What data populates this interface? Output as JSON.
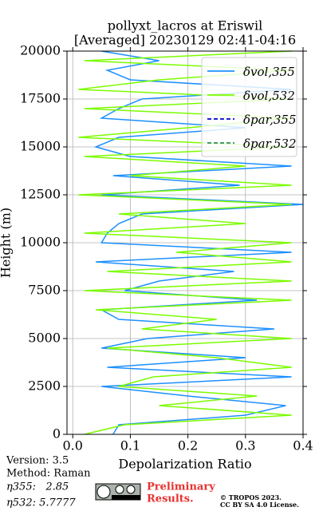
{
  "chart_data": {
    "type": "line",
    "title": "pollyxt_lacros at Eriswil",
    "subtitle": "[Averaged] 20230129 02:41-04:16",
    "xlabel": "Depolarization Ratio",
    "ylabel": "Height (m)",
    "y": [
      0,
      500,
      1000,
      1500,
      2000,
      2500,
      3000,
      3500,
      4000,
      4500,
      5000,
      5500,
      6000,
      6500,
      7000,
      7500,
      8000,
      8500,
      9000,
      9500,
      10000,
      10500,
      11000,
      11500,
      12000,
      12500,
      13000,
      13500,
      14000,
      14500,
      15000,
      15500,
      16000,
      16500,
      17000,
      17500,
      18000,
      18500,
      19000,
      19500,
      20000
    ],
    "series": [
      {
        "name": "δvol,355",
        "color": "#1e90ff",
        "dash": false,
        "values": [
          0.07,
          0.08,
          0.3,
          0.37,
          0.2,
          0.05,
          0.38,
          0.06,
          0.3,
          0.05,
          0.13,
          0.35,
          0.08,
          0.05,
          0.32,
          0.09,
          0.15,
          0.28,
          0.04,
          0.38,
          0.05,
          0.06,
          0.08,
          0.12,
          0.4,
          0.05,
          0.29,
          0.07,
          0.38,
          0.1,
          0.04,
          0.08,
          0.3,
          0.05,
          0.08,
          0.12,
          0.38,
          0.1,
          0.06,
          0.15,
          0.05
        ]
      },
      {
        "name": "δvol,532",
        "color": "#7cfc00",
        "dash": false,
        "values": [
          0.02,
          0.09,
          0.38,
          0.15,
          0.32,
          0.08,
          0.14,
          0.38,
          0.25,
          0.06,
          0.38,
          0.12,
          0.25,
          0.04,
          0.38,
          0.02,
          0.38,
          0.06,
          0.38,
          0.18,
          0.38,
          0.02,
          0.3,
          0.08,
          0.38,
          0.01,
          0.38,
          0.1,
          0.3,
          0.02,
          0.38,
          0.01,
          0.2,
          0.38,
          0.02,
          0.38,
          0.01,
          0.15,
          0.38,
          0.02,
          0.38
        ]
      },
      {
        "name": "δpar,355",
        "color": "#0000cd",
        "dash": true,
        "values": [
          null,
          null,
          null,
          null,
          null,
          null,
          null,
          null,
          null,
          null,
          null,
          null,
          null,
          null,
          null,
          null,
          null,
          null,
          null,
          null,
          null,
          null,
          null,
          null,
          null,
          null,
          null,
          null,
          null,
          null,
          null,
          null,
          null,
          null,
          null,
          null,
          null,
          null,
          null,
          null,
          null
        ]
      },
      {
        "name": "δpar,532",
        "color": "#2e8b57",
        "dash": true,
        "values": [
          null,
          null,
          null,
          null,
          null,
          null,
          null,
          null,
          null,
          null,
          null,
          null,
          null,
          null,
          null,
          null,
          null,
          null,
          null,
          null,
          null,
          null,
          null,
          null,
          null,
          null,
          null,
          null,
          null,
          null,
          null,
          null,
          null,
          null,
          null,
          null,
          null,
          null,
          null,
          null,
          null
        ]
      }
    ],
    "xlim": [
      -0.01,
      0.4
    ],
    "ylim": [
      0,
      20000
    ],
    "xticks": [
      {
        "value": 0,
        "label": "0.0"
      },
      0.1,
      0.2,
      0.3,
      0.4
    ],
    "yticks": [
      0,
      2500,
      5000,
      7500,
      10000,
      12500,
      15000,
      17500,
      20000
    ],
    "grid": true,
    "legend": "upper right",
    "annotations": [
      "Version: 3.5",
      "Method: Raman",
      "η355:   2.85",
      "η532: 5.7777"
    ],
    "logo_text": [
      "Preliminary",
      "Results."
    ],
    "license": [
      "© TROPOS 2023.",
      "CC BY SA 4.0 License."
    ]
  }
}
